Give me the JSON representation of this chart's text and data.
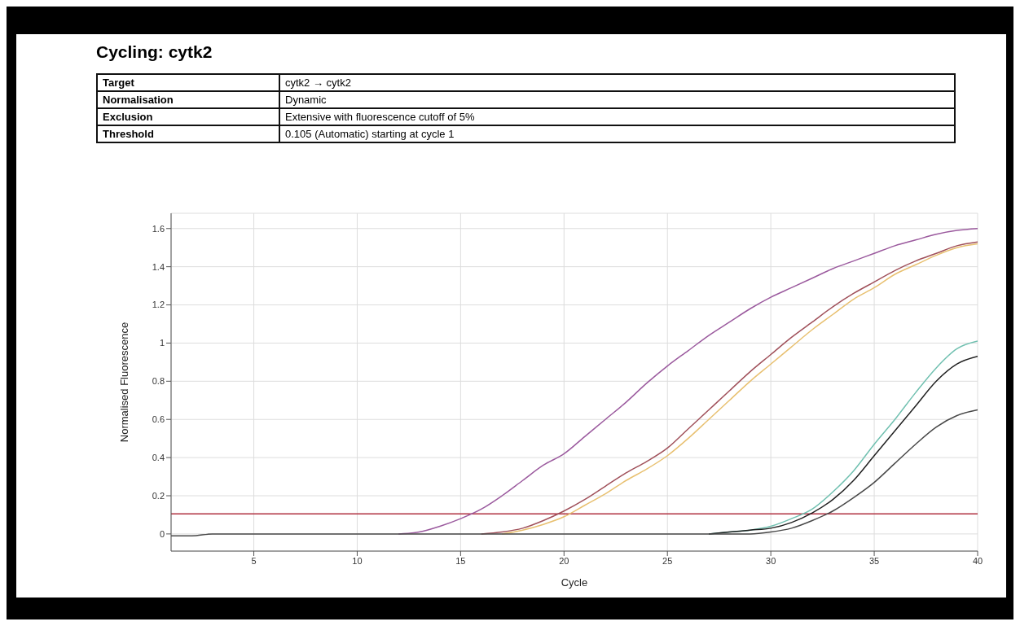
{
  "chart_data": {
    "type": "line",
    "title": "Cycling: cytk2",
    "annotations": [
      "Target",
      "cytk2 → cytk2",
      "Normalisation",
      "Dynamic",
      "Exclusion",
      "Extensive with fluorescence cutoff of 5%",
      "Threshold",
      "0.105 (Automatic) starting at cycle 1"
    ],
    "xlabel": "Cycle",
    "ylabel": "Normalised Fluorescence",
    "x": [
      1,
      2,
      3,
      4,
      5,
      6,
      7,
      8,
      9,
      10,
      11,
      12,
      13,
      14,
      15,
      16,
      17,
      18,
      19,
      20,
      21,
      22,
      23,
      24,
      25,
      26,
      27,
      28,
      29,
      30,
      31,
      32,
      33,
      34,
      35,
      36,
      37,
      38,
      39,
      40
    ],
    "series": [
      {
        "color": "#9b5a9e",
        "values": [
          null,
          null,
          null,
          null,
          null,
          null,
          null,
          null,
          null,
          null,
          null,
          0,
          0.01,
          0.04,
          0.08,
          0.13,
          0.2,
          0.28,
          0.36,
          0.42,
          0.51,
          0.6,
          0.69,
          0.79,
          0.88,
          0.96,
          1.04,
          1.11,
          1.18,
          1.24,
          1.29,
          1.34,
          1.39,
          1.43,
          1.47,
          1.51,
          1.54,
          1.57,
          1.59,
          1.6
        ]
      },
      {
        "color": "#a0505a",
        "values": [
          null,
          null,
          null,
          null,
          null,
          null,
          null,
          null,
          null,
          null,
          null,
          null,
          null,
          null,
          null,
          0,
          0.01,
          0.03,
          0.07,
          0.12,
          0.18,
          0.25,
          0.32,
          0.38,
          0.45,
          0.55,
          0.65,
          0.75,
          0.85,
          0.94,
          1.03,
          1.11,
          1.19,
          1.26,
          1.32,
          1.38,
          1.43,
          1.47,
          1.51,
          1.53
        ]
      },
      {
        "color": "#e8c070",
        "values": [
          null,
          null,
          null,
          null,
          null,
          null,
          null,
          null,
          null,
          null,
          null,
          null,
          null,
          null,
          null,
          null,
          0,
          0.02,
          0.05,
          0.09,
          0.15,
          0.21,
          0.28,
          0.34,
          0.41,
          0.5,
          0.6,
          0.7,
          0.8,
          0.89,
          0.98,
          1.07,
          1.15,
          1.23,
          1.29,
          1.36,
          1.41,
          1.46,
          1.5,
          1.52
        ]
      },
      {
        "color": "#70c0b0",
        "values": [
          null,
          null,
          null,
          null,
          null,
          null,
          null,
          null,
          null,
          null,
          null,
          null,
          null,
          null,
          null,
          null,
          null,
          null,
          null,
          null,
          null,
          null,
          null,
          null,
          null,
          null,
          0,
          0.01,
          0.02,
          0.04,
          0.08,
          0.13,
          0.22,
          0.33,
          0.47,
          0.6,
          0.74,
          0.87,
          0.97,
          1.01
        ]
      },
      {
        "color": "#202020",
        "values": [
          null,
          null,
          null,
          null,
          null,
          null,
          null,
          null,
          null,
          null,
          null,
          null,
          null,
          null,
          null,
          null,
          null,
          null,
          null,
          null,
          null,
          null,
          null,
          null,
          null,
          null,
          0,
          0.01,
          0.02,
          0.03,
          0.06,
          0.11,
          0.18,
          0.28,
          0.41,
          0.54,
          0.67,
          0.8,
          0.89,
          0.93
        ]
      },
      {
        "color": "#484848",
        "values": [
          -0.01,
          -0.01,
          0,
          0,
          0,
          0,
          0,
          0,
          0,
          0,
          0,
          0,
          0,
          0,
          0,
          0,
          0,
          0,
          0,
          0,
          0,
          0,
          0,
          0,
          0,
          0,
          0,
          0,
          0,
          0.01,
          0.03,
          0.07,
          0.12,
          0.19,
          0.27,
          0.37,
          0.47,
          0.56,
          0.62,
          0.65
        ]
      }
    ],
    "ref_lines": [
      {
        "axis": "y",
        "value": 0.105,
        "color": "#b03040"
      }
    ],
    "xlim": [
      1,
      40
    ],
    "xticks": [
      5,
      10,
      15,
      20,
      25,
      30,
      35,
      40
    ],
    "ylim": [
      -0.09,
      1.68
    ],
    "yticks": [
      0,
      0.2,
      0.4,
      0.6,
      0.8,
      1,
      1.2,
      1.4,
      1.6
    ],
    "grid": true,
    "legend": false,
    "marker": "none",
    "line_style": "solid"
  }
}
